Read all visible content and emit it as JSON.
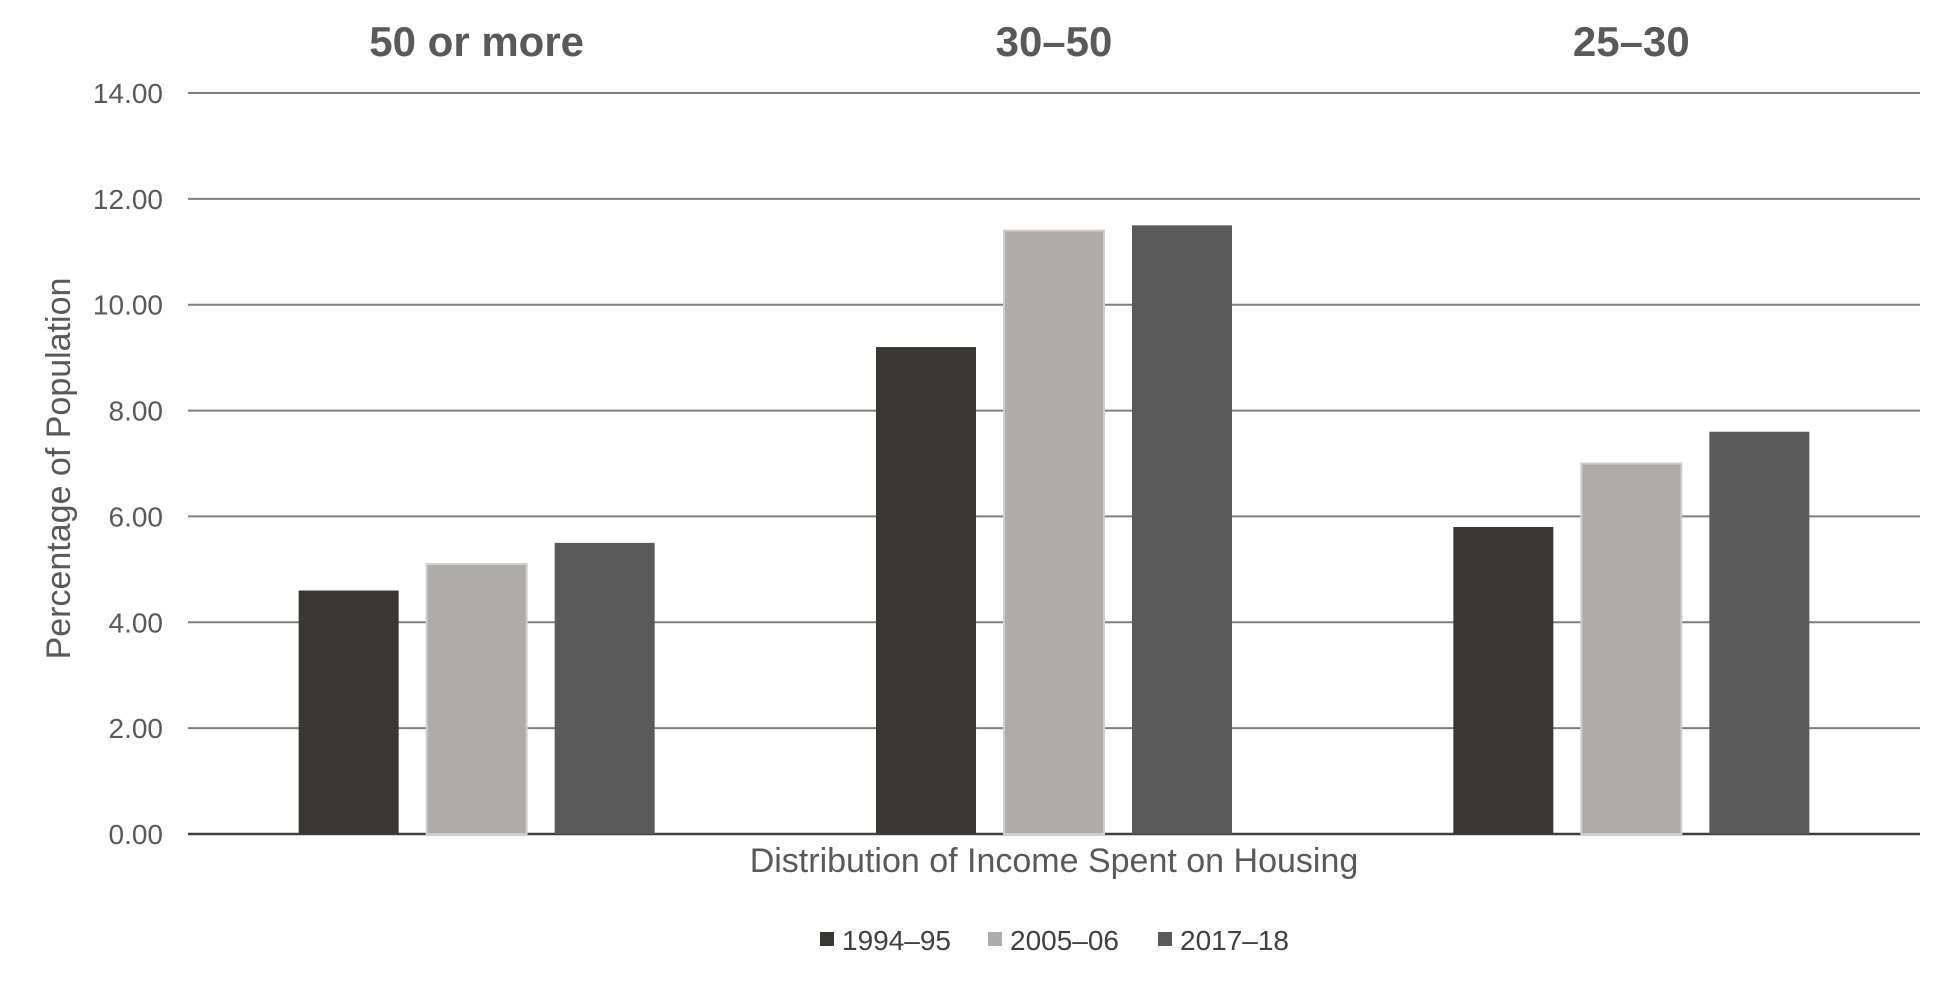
{
  "chart_data": {
    "type": "bar",
    "categories": [
      "50 or more",
      "30–50",
      "25–30"
    ],
    "series": [
      {
        "name": "1994–95",
        "values": [
          4.6,
          9.2,
          5.8
        ],
        "color": "#393734"
      },
      {
        "name": "2005–06",
        "values": [
          5.1,
          11.4,
          7.0
        ],
        "color": "#aeabaa"
      },
      {
        "name": "2017–18",
        "values": [
          5.5,
          11.5,
          7.6
        ],
        "color": "#5a5a5a"
      }
    ],
    "xlabel": "Distribution of Income Spent on Housing",
    "ylabel": "Percentage of Population",
    "ylim": [
      0,
      14
    ],
    "yticks": [
      "0.00",
      "2.00",
      "4.00",
      "6.00",
      "8.00",
      "10.00",
      "12.00",
      "14.00"
    ],
    "grid": true,
    "legend_position": "bottom"
  }
}
